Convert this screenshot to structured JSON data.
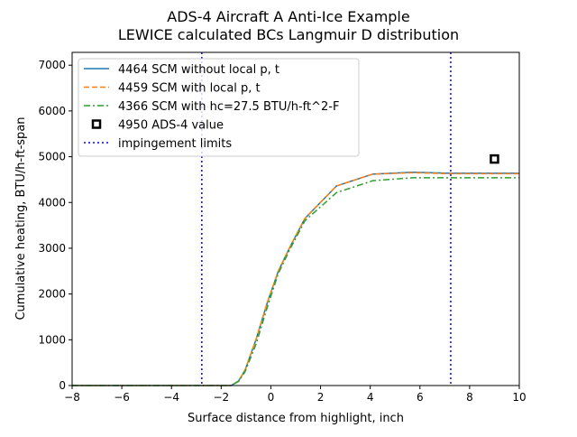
{
  "chart_data": {
    "type": "line",
    "title": "ADS-4 Aircraft A Anti-Ice Example",
    "subtitle": "LEWICE calculated BCs Langmuir D distribution",
    "xlabel": "Surface distance from highlight, inch",
    "ylabel": "Cumulative heating, BTU/h-ft-span",
    "xlim": [
      -8,
      10
    ],
    "ylim": [
      0,
      7280
    ],
    "xticks": [
      "-8",
      "-6",
      "-4",
      "-2",
      "0",
      "2",
      "4",
      "6",
      "8",
      "10"
    ],
    "yticks": [
      "0",
      "1000",
      "2000",
      "3000",
      "4000",
      "5000",
      "6000",
      "7000"
    ],
    "grid": false,
    "legend_position": "upper-left",
    "x": [
      -8,
      -2,
      -1.6,
      -1.3,
      -1.04,
      -0.6,
      -0.15,
      0.3,
      0.77,
      1.37,
      2.64,
      4.1,
      5.7,
      7.2,
      10
    ],
    "series": [
      {
        "name": "4464 SCM without local p, t",
        "color": "#1f77b4",
        "style": "solid",
        "values": [
          0,
          0,
          0,
          100,
          335,
          1000,
          1800,
          2500,
          3030,
          3650,
          4360,
          4620,
          4660,
          4640,
          4640
        ]
      },
      {
        "name": "4459 SCM with local p, t",
        "color": "#ff7f0e",
        "style": "dashed",
        "values": [
          0,
          0,
          0,
          100,
          335,
          1000,
          1800,
          2500,
          3030,
          3650,
          4360,
          4620,
          4650,
          4630,
          4630
        ]
      },
      {
        "name": "4366 SCM with hc=27.5 BTU/h-ft^2-F",
        "color": "#2ca02c",
        "style": "dashdot",
        "values": [
          0,
          0,
          0,
          90,
          300,
          900,
          1700,
          2450,
          2980,
          3600,
          4215,
          4475,
          4540,
          4540,
          4540
        ]
      }
    ],
    "point": {
      "name": "4950 ADS-4 value",
      "x": 9.0,
      "y": 4950,
      "color": "#000000",
      "marker": "square"
    },
    "vlines": {
      "name": "impingement limits",
      "x": [
        -2.78,
        7.24
      ],
      "color": "#0000ff",
      "style": "dotted"
    }
  }
}
